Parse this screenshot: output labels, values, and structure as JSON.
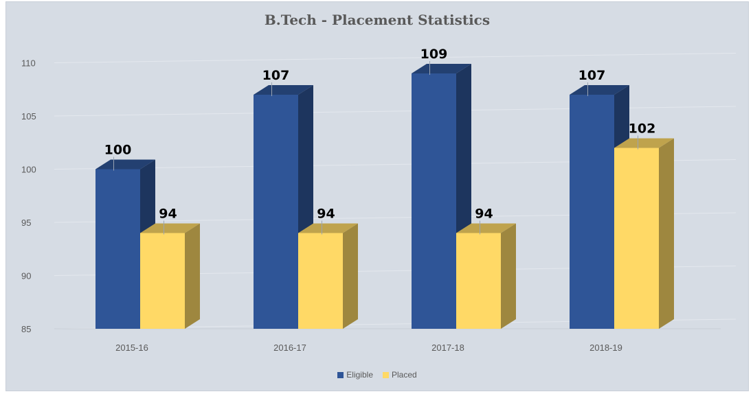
{
  "chart_data": {
    "type": "bar",
    "title": "B.Tech - Placement Statistics",
    "xlabel": "",
    "ylabel": "",
    "categories": [
      "2015-16",
      "2016-17",
      "2017-18",
      "2018-19"
    ],
    "series": [
      {
        "name": "Eligible",
        "values": [
          100,
          107,
          109,
          107
        ],
        "color": "#2f5597"
      },
      {
        "name": "Placed",
        "values": [
          94,
          94,
          94,
          102
        ],
        "color": "#ffd966"
      }
    ],
    "ylim": [
      85,
      110
    ],
    "yticks": [
      85,
      90,
      95,
      100,
      105,
      110
    ],
    "grid": true,
    "legend_position": "bottom",
    "style": "3d-column"
  }
}
